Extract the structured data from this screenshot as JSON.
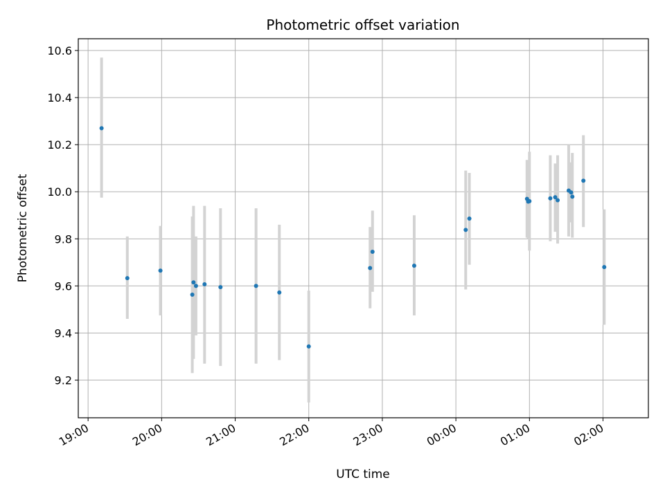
{
  "chart_data": {
    "type": "scatter",
    "title": "Photometric offset variation",
    "xlabel": "UTC time",
    "ylabel": "Photometric offset",
    "x_unit": "UTC time (HH:MM)",
    "xlim": [
      "18:52",
      "02:37"
    ],
    "ylim": [
      9.04,
      10.65
    ],
    "x_ticks": [
      "19:00",
      "20:00",
      "21:00",
      "22:00",
      "23:00",
      "00:00",
      "01:00",
      "02:00"
    ],
    "y_ticks": [
      9.2,
      9.4,
      9.6,
      9.8,
      10.0,
      10.2,
      10.4,
      10.6
    ],
    "y_tick_labels": [
      "9.2",
      "9.4",
      "9.6",
      "9.8",
      "10.0",
      "10.2",
      "10.4",
      "10.6"
    ],
    "grid": true,
    "point_color": "#1f77b4",
    "errorbar_color": "#d3d3d3",
    "points": [
      {
        "x": "19:11",
        "y": 10.27,
        "ylow": 9.975,
        "yhigh": 10.57
      },
      {
        "x": "19:32",
        "y": 9.633,
        "ylow": 9.46,
        "yhigh": 9.81
      },
      {
        "x": "19:59",
        "y": 9.665,
        "ylow": 9.475,
        "yhigh": 9.855
      },
      {
        "x": "20:25",
        "y": 9.563,
        "ylow": 9.23,
        "yhigh": 9.895
      },
      {
        "x": "20:26",
        "y": 9.615,
        "ylow": 9.29,
        "yhigh": 9.94
      },
      {
        "x": "20:28",
        "y": 9.6,
        "ylow": 9.39,
        "yhigh": 9.81
      },
      {
        "x": "20:35",
        "y": 9.607,
        "ylow": 9.27,
        "yhigh": 9.94
      },
      {
        "x": "20:48",
        "y": 9.595,
        "ylow": 9.26,
        "yhigh": 9.93
      },
      {
        "x": "21:17",
        "y": 9.6,
        "ylow": 9.27,
        "yhigh": 9.93
      },
      {
        "x": "21:36",
        "y": 9.572,
        "ylow": 9.285,
        "yhigh": 9.86
      },
      {
        "x": "22:00",
        "y": 9.343,
        "ylow": 9.105,
        "yhigh": 9.58
      },
      {
        "x": "22:50",
        "y": 9.676,
        "ylow": 9.505,
        "yhigh": 9.85
      },
      {
        "x": "22:52",
        "y": 9.745,
        "ylow": 9.575,
        "yhigh": 9.92
      },
      {
        "x": "23:26",
        "y": 9.686,
        "ylow": 9.475,
        "yhigh": 9.9
      },
      {
        "x": "00:08",
        "y": 9.838,
        "ylow": 9.585,
        "yhigh": 10.09
      },
      {
        "x": "00:11",
        "y": 9.886,
        "ylow": 9.69,
        "yhigh": 10.08
      },
      {
        "x": "00:58",
        "y": 9.97,
        "ylow": 9.805,
        "yhigh": 10.135
      },
      {
        "x": "00:59",
        "y": 9.958,
        "ylow": 9.8,
        "yhigh": 10.115
      },
      {
        "x": "01:00",
        "y": 9.96,
        "ylow": 9.75,
        "yhigh": 10.17
      },
      {
        "x": "01:17",
        "y": 9.972,
        "ylow": 9.79,
        "yhigh": 10.155
      },
      {
        "x": "01:21",
        "y": 9.977,
        "ylow": 9.83,
        "yhigh": 10.12
      },
      {
        "x": "01:23",
        "y": 9.964,
        "ylow": 9.78,
        "yhigh": 10.155
      },
      {
        "x": "01:32",
        "y": 10.005,
        "ylow": 9.81,
        "yhigh": 10.2
      },
      {
        "x": "01:34",
        "y": 9.997,
        "ylow": 9.87,
        "yhigh": 10.125
      },
      {
        "x": "01:35",
        "y": 9.979,
        "ylow": 9.805,
        "yhigh": 10.165
      },
      {
        "x": "01:44",
        "y": 10.047,
        "ylow": 9.85,
        "yhigh": 10.24
      },
      {
        "x": "02:01",
        "y": 9.68,
        "ylow": 9.435,
        "yhigh": 9.925
      }
    ]
  }
}
